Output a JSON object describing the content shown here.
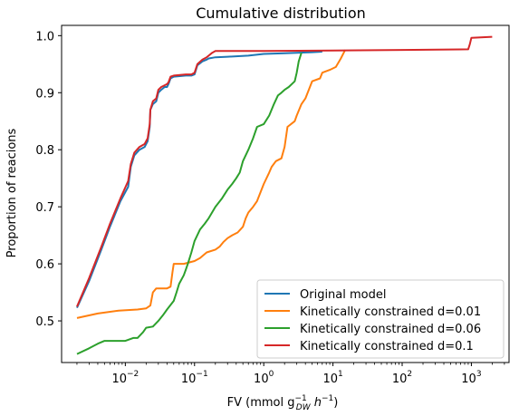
{
  "chart_data": {
    "type": "line",
    "title": "Cumulative distribution",
    "xlabel": "FV (mmol g_DW^-1 h^-1)",
    "xlabel_parts": {
      "pre": "FV (mmol g",
      "sup1": "−1",
      "sub1": "DW",
      "mid": " h",
      "sup2": "−1",
      "post": ")"
    },
    "ylabel": "Proportion of reacions",
    "xscale": "log",
    "xlim": [
      0.0012,
      3500
    ],
    "ylim": [
      0.427,
      1.018
    ],
    "xticks": [
      0.01,
      0.1,
      1,
      10,
      100,
      1000
    ],
    "xtick_labels": [
      {
        "base": "10",
        "exp": "−2"
      },
      {
        "base": "10",
        "exp": "−1"
      },
      {
        "base": "10",
        "exp": "0"
      },
      {
        "base": "10",
        "exp": "1"
      },
      {
        "base": "10",
        "exp": "2"
      },
      {
        "base": "10",
        "exp": "3"
      }
    ],
    "yticks": [
      0.5,
      0.6,
      0.7,
      0.8,
      0.9,
      1.0
    ],
    "ytick_labels": [
      "0.5",
      "0.6",
      "0.7",
      "0.8",
      "0.9",
      "1.0"
    ],
    "legend_position": "lower-right",
    "grid": false,
    "series": [
      {
        "name": "Original model",
        "color": "#1f77b4",
        "points": [
          [
            0.002,
            0.523
          ],
          [
            0.003,
            0.57
          ],
          [
            0.0045,
            0.625
          ],
          [
            0.006,
            0.665
          ],
          [
            0.0085,
            0.71
          ],
          [
            0.011,
            0.735
          ],
          [
            0.012,
            0.77
          ],
          [
            0.0135,
            0.79
          ],
          [
            0.016,
            0.8
          ],
          [
            0.019,
            0.805
          ],
          [
            0.021,
            0.815
          ],
          [
            0.0225,
            0.84
          ],
          [
            0.023,
            0.87
          ],
          [
            0.025,
            0.88
          ],
          [
            0.028,
            0.885
          ],
          [
            0.03,
            0.9
          ],
          [
            0.033,
            0.905
          ],
          [
            0.037,
            0.91
          ],
          [
            0.04,
            0.91
          ],
          [
            0.042,
            0.915
          ],
          [
            0.045,
            0.925
          ],
          [
            0.05,
            0.928
          ],
          [
            0.075,
            0.93
          ],
          [
            0.09,
            0.93
          ],
          [
            0.1,
            0.932
          ],
          [
            0.11,
            0.948
          ],
          [
            0.13,
            0.955
          ],
          [
            0.15,
            0.958
          ],
          [
            0.16,
            0.96
          ],
          [
            0.2,
            0.962
          ],
          [
            0.3,
            0.963
          ],
          [
            0.6,
            0.965
          ],
          [
            1.0,
            0.968
          ],
          [
            2.0,
            0.969
          ],
          [
            3.0,
            0.97
          ],
          [
            5.0,
            0.971
          ],
          [
            7.0,
            0.972
          ]
        ]
      },
      {
        "name": "Kinetically constrained d=0.01",
        "color": "#ff7f0e",
        "points": [
          [
            0.002,
            0.505
          ],
          [
            0.004,
            0.513
          ],
          [
            0.008,
            0.518
          ],
          [
            0.015,
            0.52
          ],
          [
            0.02,
            0.522
          ],
          [
            0.023,
            0.527
          ],
          [
            0.025,
            0.55
          ],
          [
            0.028,
            0.557
          ],
          [
            0.04,
            0.557
          ],
          [
            0.045,
            0.56
          ],
          [
            0.048,
            0.585
          ],
          [
            0.05,
            0.6
          ],
          [
            0.07,
            0.6
          ],
          [
            0.1,
            0.605
          ],
          [
            0.12,
            0.61
          ],
          [
            0.15,
            0.62
          ],
          [
            0.2,
            0.625
          ],
          [
            0.23,
            0.63
          ],
          [
            0.26,
            0.638
          ],
          [
            0.3,
            0.645
          ],
          [
            0.35,
            0.65
          ],
          [
            0.42,
            0.655
          ],
          [
            0.5,
            0.665
          ],
          [
            0.55,
            0.68
          ],
          [
            0.6,
            0.69
          ],
          [
            0.7,
            0.7
          ],
          [
            0.8,
            0.71
          ],
          [
            1.0,
            0.74
          ],
          [
            1.2,
            0.76
          ],
          [
            1.3,
            0.77
          ],
          [
            1.5,
            0.78
          ],
          [
            1.8,
            0.785
          ],
          [
            2.0,
            0.805
          ],
          [
            2.2,
            0.84
          ],
          [
            2.8,
            0.85
          ],
          [
            3.0,
            0.86
          ],
          [
            3.5,
            0.88
          ],
          [
            4.0,
            0.89
          ],
          [
            5.0,
            0.92
          ],
          [
            6.5,
            0.925
          ],
          [
            7.0,
            0.935
          ],
          [
            9.0,
            0.94
          ],
          [
            11.0,
            0.945
          ],
          [
            13.0,
            0.96
          ],
          [
            15.0,
            0.975
          ]
        ]
      },
      {
        "name": "Kinetically constrained d=0.06",
        "color": "#2ca02c",
        "points": [
          [
            0.002,
            0.442
          ],
          [
            0.003,
            0.452
          ],
          [
            0.004,
            0.46
          ],
          [
            0.005,
            0.465
          ],
          [
            0.01,
            0.465
          ],
          [
            0.013,
            0.47
          ],
          [
            0.015,
            0.47
          ],
          [
            0.018,
            0.48
          ],
          [
            0.02,
            0.488
          ],
          [
            0.025,
            0.49
          ],
          [
            0.03,
            0.5
          ],
          [
            0.035,
            0.51
          ],
          [
            0.04,
            0.52
          ],
          [
            0.05,
            0.535
          ],
          [
            0.055,
            0.55
          ],
          [
            0.06,
            0.565
          ],
          [
            0.07,
            0.58
          ],
          [
            0.075,
            0.59
          ],
          [
            0.08,
            0.6
          ],
          [
            0.09,
            0.62
          ],
          [
            0.1,
            0.64
          ],
          [
            0.12,
            0.66
          ],
          [
            0.14,
            0.67
          ],
          [
            0.16,
            0.68
          ],
          [
            0.2,
            0.7
          ],
          [
            0.25,
            0.715
          ],
          [
            0.3,
            0.73
          ],
          [
            0.35,
            0.74
          ],
          [
            0.4,
            0.75
          ],
          [
            0.45,
            0.76
          ],
          [
            0.5,
            0.78
          ],
          [
            0.6,
            0.8
          ],
          [
            0.7,
            0.82
          ],
          [
            0.8,
            0.84
          ],
          [
            1.0,
            0.845
          ],
          [
            1.2,
            0.86
          ],
          [
            1.4,
            0.88
          ],
          [
            1.6,
            0.895
          ],
          [
            1.8,
            0.9
          ],
          [
            2.0,
            0.905
          ],
          [
            2.3,
            0.91
          ],
          [
            2.8,
            0.92
          ],
          [
            3.0,
            0.935
          ],
          [
            3.2,
            0.955
          ],
          [
            3.5,
            0.97
          ]
        ]
      },
      {
        "name": "Kinetically constrained d=0.1",
        "color": "#d62728",
        "points": [
          [
            0.002,
            0.525
          ],
          [
            0.003,
            0.575
          ],
          [
            0.0045,
            0.63
          ],
          [
            0.006,
            0.67
          ],
          [
            0.0085,
            0.715
          ],
          [
            0.011,
            0.745
          ],
          [
            0.012,
            0.775
          ],
          [
            0.0135,
            0.795
          ],
          [
            0.016,
            0.805
          ],
          [
            0.019,
            0.81
          ],
          [
            0.021,
            0.82
          ],
          [
            0.0225,
            0.845
          ],
          [
            0.023,
            0.87
          ],
          [
            0.025,
            0.885
          ],
          [
            0.028,
            0.89
          ],
          [
            0.03,
            0.905
          ],
          [
            0.033,
            0.91
          ],
          [
            0.037,
            0.913
          ],
          [
            0.04,
            0.915
          ],
          [
            0.042,
            0.918
          ],
          [
            0.045,
            0.928
          ],
          [
            0.05,
            0.93
          ],
          [
            0.075,
            0.932
          ],
          [
            0.09,
            0.932
          ],
          [
            0.1,
            0.935
          ],
          [
            0.11,
            0.95
          ],
          [
            0.13,
            0.958
          ],
          [
            0.15,
            0.962
          ],
          [
            0.16,
            0.965
          ],
          [
            0.18,
            0.97
          ],
          [
            0.2,
            0.973
          ],
          [
            1.0,
            0.973
          ],
          [
            10.0,
            0.974
          ],
          [
            100.0,
            0.975
          ],
          [
            900.0,
            0.976
          ],
          [
            950.0,
            0.985
          ],
          [
            1000.0,
            0.996
          ],
          [
            2000.0,
            0.998
          ]
        ]
      }
    ]
  }
}
